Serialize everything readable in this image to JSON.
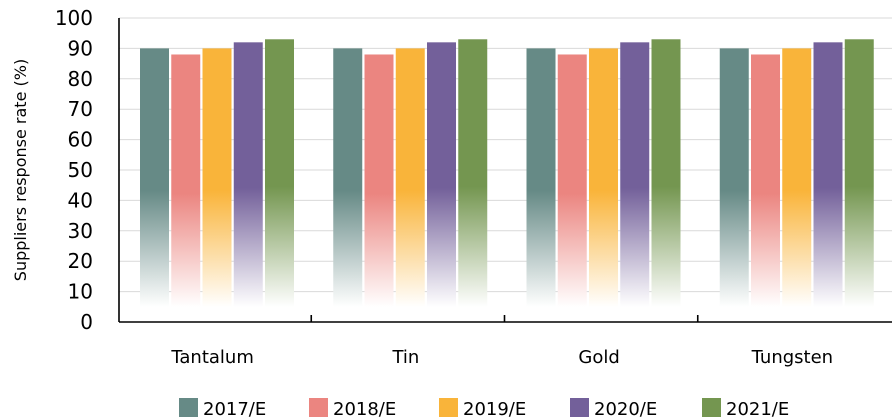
{
  "chart_data": {
    "type": "bar",
    "title": "",
    "xlabel": "",
    "ylabel": "Suppliers response rate (%)",
    "ylim": [
      0,
      100
    ],
    "yticks": [
      "0",
      "10",
      "20",
      "30",
      "40",
      "50",
      "60",
      "70",
      "80",
      "90",
      "100"
    ],
    "grid": true,
    "legend_position": "bottom",
    "categories": [
      "Tantalum",
      "Tin",
      "Gold",
      "Tungsten"
    ],
    "series": [
      {
        "name": "2017/E",
        "color": "#668a86",
        "values": [
          90,
          90,
          90,
          90
        ]
      },
      {
        "name": "2018/E",
        "color": "#eb8580",
        "values": [
          88,
          88,
          88,
          88
        ]
      },
      {
        "name": "2019/E",
        "color": "#f9b43a",
        "values": [
          90,
          90,
          90,
          90
        ]
      },
      {
        "name": "2020/E",
        "color": "#73609a",
        "values": [
          92,
          92,
          92,
          92
        ]
      },
      {
        "name": "2021/E",
        "color": "#749650",
        "values": [
          93,
          93,
          93,
          93
        ]
      }
    ]
  }
}
